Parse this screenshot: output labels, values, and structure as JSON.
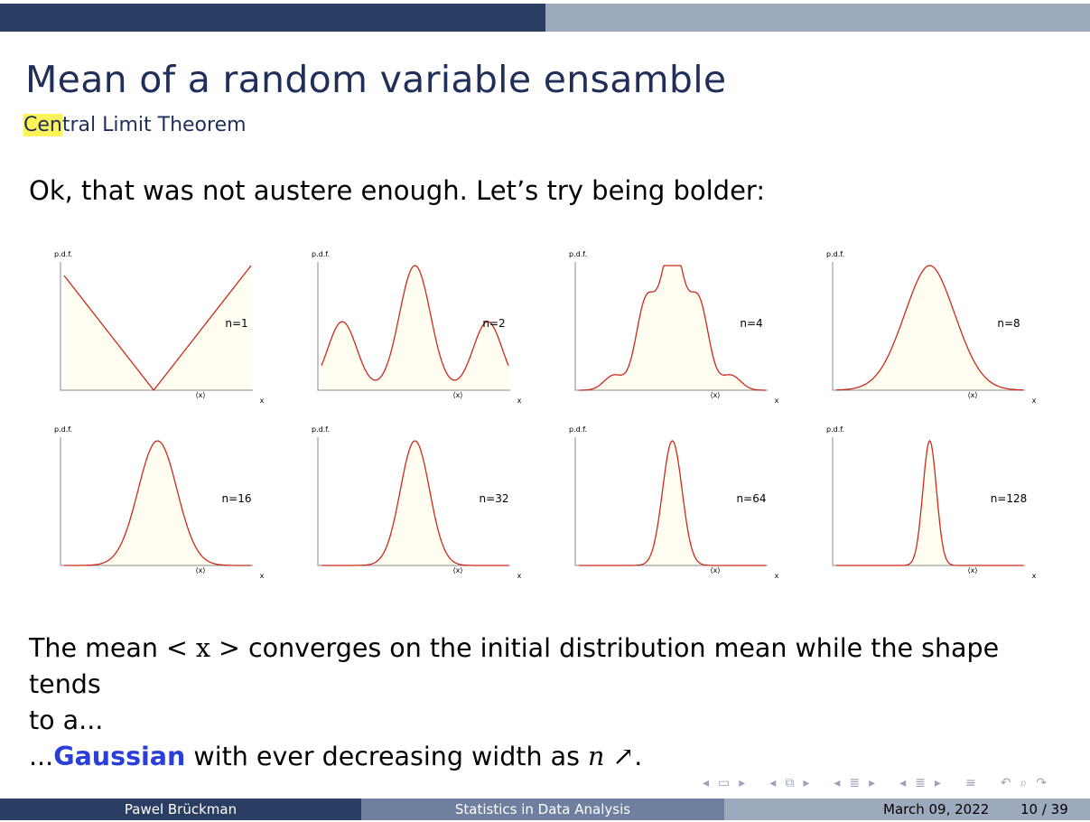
{
  "slide": {
    "title": "Mean of a random variable ensamble",
    "subtitle_highlight": "Cen",
    "subtitle_rest": "tral Limit Theorem",
    "intro": "Ok, that was not austere enough.  Let’s try being bolder:",
    "progress_fraction": 0.5
  },
  "plots": {
    "ylabel": "p.d.f.",
    "xlabel": "x",
    "xtick": "⟨x⟩",
    "panels": [
      {
        "label": "n=1"
      },
      {
        "label": "n=2"
      },
      {
        "label": "n=4"
      },
      {
        "label": "n=8"
      },
      {
        "label": "n=16"
      },
      {
        "label": "n=32"
      },
      {
        "label": "n=64"
      },
      {
        "label": "n=128"
      }
    ]
  },
  "body": {
    "line1_a": "The mean ",
    "line1_math": "< x >",
    "line1_b": " converges on the initial distribution mean while the shape tends",
    "line2": "to a...",
    "line3_a": "...",
    "line3_bold": "Gaussian",
    "line3_b": " with ever decreasing width as ",
    "line3_math": "n ↗",
    "line3_c": "."
  },
  "footer": {
    "author": "Pawel Brückman",
    "course": "Statistics in Data Analysis",
    "date": "March 09, 2022",
    "page": "10 / 39"
  },
  "colors": {
    "curve": "#cc2a1e",
    "fill": "#fffef0",
    "title": "#1f2f5a",
    "accent": "#2a3fd9"
  },
  "nav_icons": [
    "frame-prev-icon",
    "frame-icon",
    "frame-next-icon",
    "subsection-prev-icon",
    "subsection-icon",
    "subsection-next-icon",
    "section-prev-icon",
    "section-icon",
    "section-next-icon",
    "doc-prev-icon",
    "doc-icon",
    "doc-next-icon",
    "outline-icon",
    "back-icon",
    "search-icon",
    "forward-icon"
  ]
}
